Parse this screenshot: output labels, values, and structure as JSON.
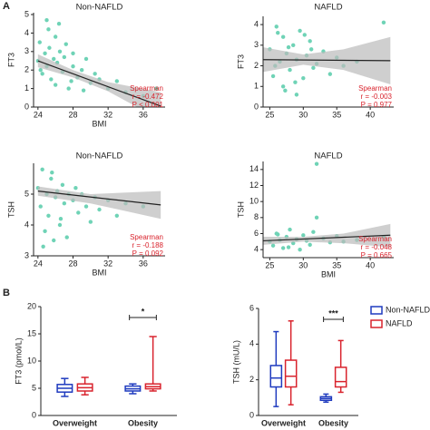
{
  "panel_labels": [
    "A",
    "B"
  ],
  "chart_data": [
    {
      "type": "scatter",
      "title": "Non-NAFLD",
      "x_label": "BMI",
      "y_label": "FT3",
      "color": "#6fd3b6",
      "line_color": "#222222",
      "band_color": "#bbbbbb",
      "x": [
        24,
        24.2,
        24.5,
        24.8,
        25,
        25,
        25.3,
        25.5,
        25.8,
        26,
        26,
        26.2,
        26.5,
        26.8,
        27,
        27.2,
        27.5,
        28,
        28,
        28.5,
        29,
        29.5,
        30,
        30.5,
        31,
        32,
        33,
        34,
        36,
        37.5,
        24.3,
        25.2,
        26.4,
        27.8,
        29.2
      ],
      "y": [
        2.5,
        3.5,
        1.8,
        2.9,
        4.7,
        2.2,
        3.2,
        1.5,
        2.6,
        3.8,
        1.2,
        2.4,
        3.0,
        1.9,
        2.7,
        3.4,
        1.0,
        2.2,
        2.9,
        1.6,
        2.0,
        2.6,
        1.3,
        1.8,
        1.5,
        1.0,
        1.4,
        0.8,
        0.6,
        1.0,
        2.0,
        4.2,
        4.5,
        1.4,
        0.9
      ],
      "trend": {
        "x": [
          24,
          38
        ],
        "y": [
          2.5,
          0.05
        ]
      },
      "band": {
        "x": [
          24,
          28,
          32,
          38
        ],
        "lower": [
          2.15,
          1.6,
          0.85,
          -0.7
        ],
        "upper": [
          2.85,
          2.0,
          1.35,
          0.8
        ]
      },
      "annotations": [
        "Spearman",
        "r = -0.472",
        "P < 0.001"
      ],
      "xlim": [
        23.5,
        38.5
      ],
      "xticks": [
        24,
        28,
        32,
        36
      ],
      "ylim": [
        0,
        5.1
      ],
      "yticks": [
        0,
        1,
        2,
        3,
        4,
        5
      ]
    },
    {
      "type": "scatter",
      "title": "NAFLD",
      "y_label": "FT3",
      "color": "#6fd3b6",
      "line_color": "#222222",
      "band_color": "#bbbbbb",
      "x": [
        25,
        25.5,
        26,
        26.5,
        27,
        27,
        27.5,
        28,
        28.5,
        29,
        29,
        29.5,
        30,
        30.5,
        31,
        31.5,
        32,
        33,
        34,
        35,
        36,
        38,
        42,
        26.2,
        27.8,
        28.8,
        30.2,
        25.8,
        27.3,
        31.2
      ],
      "y": [
        2.8,
        1.5,
        3.9,
        2.2,
        1.0,
        3.4,
        2.6,
        1.8,
        3.0,
        0.6,
        2.3,
        3.7,
        1.4,
        2.5,
        3.2,
        1.9,
        2.1,
        2.7,
        1.6,
        2.4,
        2.0,
        2.2,
        4.1,
        3.6,
        2.9,
        1.2,
        3.5,
        2.0,
        0.8,
        2.8
      ],
      "trend": {
        "x": [
          24,
          43
        ],
        "y": [
          2.3,
          2.25
        ]
      },
      "band": {
        "x": [
          24,
          30,
          36,
          43
        ],
        "lower": [
          1.7,
          2.05,
          1.8,
          1.1
        ],
        "upper": [
          2.9,
          2.55,
          2.8,
          3.4
        ]
      },
      "annotations": [
        "Spearman",
        "r = -0.003",
        "P = 0.977"
      ],
      "xlim": [
        24,
        43.5
      ],
      "xticks": [
        25,
        30,
        35,
        40
      ],
      "ylim": [
        0,
        4.4
      ],
      "yticks": [
        0,
        1,
        2,
        3,
        4
      ]
    },
    {
      "type": "scatter",
      "title": "Non-NAFLD",
      "x_label": "BMI",
      "y_label": "TSH",
      "color": "#6fd3b6",
      "line_color": "#222222",
      "band_color": "#bbbbbb",
      "x": [
        24,
        24.3,
        24.5,
        24.8,
        25,
        25.2,
        25.5,
        25.8,
        26,
        26.2,
        26.5,
        26.8,
        27,
        27.3,
        27.5,
        28,
        28.3,
        28.6,
        29,
        29.5,
        30,
        30.5,
        31,
        32,
        33,
        34,
        36,
        24.6,
        25.6,
        26.6
      ],
      "y": [
        5.2,
        4.6,
        5.8,
        3.8,
        5.0,
        4.3,
        5.5,
        3.5,
        4.9,
        5.1,
        4.0,
        5.3,
        4.7,
        3.6,
        5.0,
        4.8,
        5.2,
        4.4,
        5.0,
        4.6,
        4.1,
        4.9,
        4.5,
        4.8,
        4.3,
        4.7,
        4.6,
        3.3,
        5.7,
        4.2
      ],
      "trend": {
        "x": [
          24,
          38
        ],
        "y": [
          5.1,
          4.65
        ]
      },
      "band": {
        "x": [
          24,
          30,
          38
        ],
        "lower": [
          4.95,
          4.7,
          4.2
        ],
        "upper": [
          5.25,
          5.0,
          5.1
        ]
      },
      "annotations": [
        "Spearman",
        "r = -0.188",
        "P = 0.092"
      ],
      "xlim": [
        23.5,
        38.5
      ],
      "xticks": [
        24,
        28,
        32,
        36
      ],
      "ylim": [
        3,
        6
      ],
      "yticks": [
        3,
        4,
        5
      ]
    },
    {
      "type": "scatter",
      "title": "NAFLD",
      "x_label": "BMI",
      "y_label": "TSH",
      "color": "#6fd3b6",
      "line_color": "#222222",
      "band_color": "#bbbbbb",
      "x": [
        25,
        25.5,
        26,
        26.5,
        27,
        27.5,
        28,
        28.5,
        29,
        29.5,
        30,
        30.5,
        31,
        31.5,
        32,
        33,
        34,
        35,
        36,
        38,
        42,
        26.2,
        27.8,
        32
      ],
      "y": [
        5.0,
        4.5,
        6.0,
        5.2,
        4.2,
        5.6,
        6.5,
        4.8,
        5.3,
        4.0,
        5.8,
        5.1,
        4.6,
        6.2,
        14.7,
        5.4,
        4.9,
        5.7,
        5.0,
        5.2,
        5.6,
        5.9,
        4.3,
        8.0
      ],
      "trend": {
        "x": [
          24,
          43
        ],
        "y": [
          5.1,
          5.8
        ]
      },
      "band": {
        "x": [
          24,
          30,
          36,
          43
        ],
        "lower": [
          4.6,
          5.0,
          4.8,
          4.3
        ],
        "upper": [
          5.6,
          5.6,
          6.0,
          7.2
        ]
      },
      "annotations": [
        "Spearman",
        "r = -0.048",
        "P = 0.665"
      ],
      "xlim": [
        24,
        43.5
      ],
      "xticks": [
        25,
        30,
        35,
        40
      ],
      "ylim": [
        3,
        15
      ],
      "yticks": [
        4,
        6,
        8,
        10,
        12,
        14
      ]
    },
    {
      "type": "box",
      "y_label": "FT3 (pmol/L)",
      "categories": [
        "Overweight",
        "Obesity"
      ],
      "series": [
        {
          "name": "Non-NAFLD",
          "color": "#1f3bbf",
          "min": [
            3.5,
            4.0
          ],
          "q1": [
            4.3,
            4.5
          ],
          "median": [
            5.0,
            4.9
          ],
          "q3": [
            5.7,
            5.4
          ],
          "max": [
            6.8,
            5.8
          ]
        },
        {
          "name": "NAFLD",
          "color": "#d9232d",
          "min": [
            3.8,
            4.5
          ],
          "q1": [
            4.5,
            4.9
          ],
          "median": [
            5.1,
            5.3
          ],
          "q3": [
            5.8,
            5.8
          ],
          "max": [
            7.0,
            14.5
          ]
        }
      ],
      "significance": {
        "label": "*",
        "category": 1
      },
      "ylim": [
        0,
        20
      ],
      "yticks": [
        0,
        5,
        10,
        15,
        20
      ]
    },
    {
      "type": "box",
      "y_label": "TSH (mU/L)",
      "categories": [
        "Overweight",
        "Obesity"
      ],
      "legend": "right",
      "series": [
        {
          "name": "Non-NAFLD",
          "color": "#1f3bbf",
          "min": [
            0.5,
            0.75
          ],
          "q1": [
            1.6,
            0.85
          ],
          "median": [
            2.1,
            0.95
          ],
          "q3": [
            2.8,
            1.05
          ],
          "max": [
            4.7,
            1.2
          ]
        },
        {
          "name": "NAFLD",
          "color": "#d9232d",
          "min": [
            0.6,
            1.3
          ],
          "q1": [
            1.6,
            1.6
          ],
          "median": [
            2.2,
            1.9
          ],
          "q3": [
            3.1,
            2.7
          ],
          "max": [
            5.3,
            4.2
          ]
        }
      ],
      "significance": {
        "label": "***",
        "category": 1
      },
      "ylim": [
        0,
        6
      ],
      "yticks": [
        0,
        2,
        4,
        6
      ]
    }
  ]
}
